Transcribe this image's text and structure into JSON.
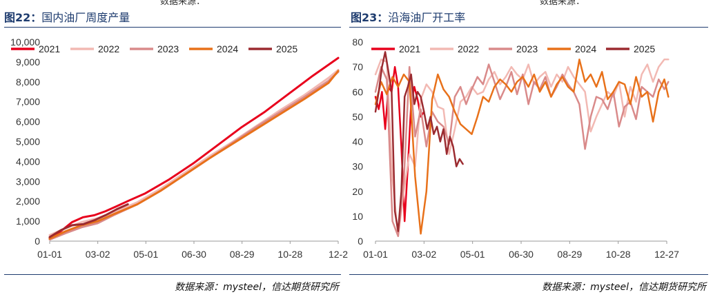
{
  "header_fragments": {
    "left": "数据来源：",
    "right": "数据来源："
  },
  "charts": [
    {
      "title_prefix": "图22：",
      "title_text": "国内油厂周度产量",
      "source": "数据来源：mysteel，信达期货研究所"
    },
    {
      "title_prefix": "图23：",
      "title_text": "沿海油厂开工率",
      "source": "数据来源：mysteel，信达期货研究所"
    }
  ],
  "chart_data": [
    {
      "type": "line",
      "title": "国内油厂周度产量",
      "x_tick_labels": [
        "01-01",
        "03-02",
        "05-01",
        "06-30",
        "08-29",
        "10-28",
        "12-2"
      ],
      "y_tick_labels": [
        "0",
        "1,000",
        "2,000",
        "3,000",
        "4,000",
        "5,000",
        "6,000",
        "7,000",
        "8,000",
        "9,000",
        "10,000"
      ],
      "ylim": [
        0,
        10000
      ],
      "x_domain_days": [
        0,
        362
      ],
      "grid": false,
      "legend": "top",
      "series": [
        {
          "name": "2021",
          "color": "#e8001c",
          "width": 3,
          "x": [
            0,
            14,
            28,
            42,
            56,
            70,
            84,
            100,
            120,
            150,
            180,
            210,
            240,
            270,
            300,
            330,
            362
          ],
          "y": [
            150,
            500,
            950,
            1200,
            1300,
            1500,
            1750,
            2050,
            2400,
            3100,
            3900,
            4800,
            5700,
            6500,
            7400,
            8300,
            9200
          ]
        },
        {
          "name": "2022",
          "color": "#f2b9b3",
          "width": 3,
          "x": [
            0,
            20,
            40,
            60,
            80,
            110,
            140,
            170,
            200,
            230,
            260,
            290,
            320,
            350,
            362
          ],
          "y": [
            300,
            650,
            950,
            1150,
            1450,
            1950,
            2650,
            3450,
            4250,
            5000,
            5800,
            6600,
            7350,
            8200,
            8600
          ]
        },
        {
          "name": "2023",
          "color": "#d98a8a",
          "width": 3,
          "x": [
            0,
            20,
            40,
            60,
            80,
            110,
            140,
            170,
            200,
            230,
            260,
            290,
            320,
            350,
            362
          ],
          "y": [
            80,
            400,
            700,
            900,
            1300,
            1850,
            2550,
            3350,
            4150,
            4950,
            5750,
            6500,
            7250,
            8050,
            8500
          ]
        },
        {
          "name": "2024",
          "color": "#e8711a",
          "width": 3,
          "x": [
            0,
            20,
            40,
            60,
            80,
            110,
            140,
            170,
            200,
            230,
            260,
            290,
            320,
            350,
            362
          ],
          "y": [
            120,
            500,
            800,
            1000,
            1350,
            1850,
            2550,
            3350,
            4150,
            4900,
            5650,
            6400,
            7150,
            7950,
            8550
          ]
        },
        {
          "name": "2025",
          "color": "#9b2b30",
          "width": 3,
          "x": [
            0,
            14,
            28,
            42,
            56,
            70,
            84,
            98
          ],
          "y": [
            200,
            550,
            800,
            850,
            1050,
            1300,
            1600,
            1850
          ]
        }
      ]
    },
    {
      "type": "line",
      "title": "沿海油厂开工率",
      "x_tick_labels": [
        "01-01",
        "03-02",
        "05-01",
        "06-30",
        "08-29",
        "10-28",
        "12-27"
      ],
      "y_tick_labels": [
        "0",
        "10",
        "20",
        "30",
        "40",
        "50",
        "60",
        "70",
        "80"
      ],
      "ylim": [
        0,
        80
      ],
      "x_domain_days": [
        0,
        360
      ],
      "grid": false,
      "legend": "top",
      "series": [
        {
          "name": "2021",
          "color": "#e8001c",
          "width": 2.5,
          "x": [
            0,
            4,
            8,
            12,
            16,
            20,
            24,
            28,
            32,
            36,
            40,
            44,
            48,
            52,
            56,
            60
          ],
          "y": [
            58,
            53,
            60,
            45,
            62,
            60,
            70,
            62,
            38,
            8,
            30,
            55,
            62,
            57,
            50,
            52
          ]
        },
        {
          "name": "2022",
          "color": "#f2b9b3",
          "width": 2.5,
          "x": [
            0,
            7,
            14,
            21,
            28,
            35,
            42,
            49,
            56,
            63,
            70,
            77,
            84,
            91,
            98,
            105,
            112,
            119,
            126,
            133,
            140,
            147,
            154,
            161,
            168,
            175,
            182,
            189,
            196,
            203,
            210,
            217,
            224,
            231,
            238,
            245,
            252,
            259,
            266,
            273,
            280,
            287,
            294,
            301,
            308,
            315,
            322,
            329,
            336,
            343,
            350,
            357,
            362
          ],
          "y": [
            67,
            73,
            72,
            25,
            2,
            20,
            35,
            30,
            57,
            63,
            60,
            54,
            53,
            35,
            45,
            56,
            58,
            62,
            59,
            60,
            65,
            68,
            63,
            66,
            70,
            67,
            65,
            71,
            63,
            66,
            68,
            62,
            67,
            64,
            70,
            66,
            63,
            60,
            44,
            50,
            55,
            60,
            58,
            64,
            50,
            62,
            56,
            67,
            71,
            64,
            70,
            73,
            73
          ]
        },
        {
          "name": "2023",
          "color": "#d98a8a",
          "width": 2.5,
          "x": [
            0,
            7,
            14,
            21,
            28,
            35,
            42,
            49,
            56,
            63,
            70,
            77,
            84,
            91,
            98,
            105,
            112,
            119,
            126,
            133,
            140,
            147,
            154,
            161,
            168,
            175,
            182,
            189,
            196,
            203,
            210,
            217,
            224,
            231,
            238,
            245,
            252,
            259,
            266,
            273,
            280,
            287,
            294,
            301,
            308,
            315,
            322,
            329,
            336,
            343,
            350,
            357,
            362
          ],
          "y": [
            60,
            70,
            65,
            8,
            2,
            24,
            70,
            42,
            53,
            38,
            52,
            48,
            46,
            39,
            58,
            62,
            55,
            61,
            66,
            63,
            71,
            64,
            57,
            62,
            68,
            59,
            67,
            55,
            64,
            61,
            66,
            58,
            62,
            67,
            63,
            60,
            55,
            37,
            50,
            58,
            57,
            53,
            60,
            46,
            54,
            56,
            49,
            62,
            60,
            58,
            65,
            61,
            64
          ]
        },
        {
          "name": "2024",
          "color": "#e8711a",
          "width": 2.5,
          "x": [
            0,
            7,
            14,
            21,
            28,
            35,
            42,
            49,
            56,
            63,
            70,
            77,
            84,
            91,
            98,
            105,
            112,
            119,
            126,
            133,
            140,
            147,
            154,
            161,
            168,
            175,
            182,
            189,
            196,
            203,
            210,
            217,
            224,
            231,
            238,
            245,
            252,
            259,
            266,
            273,
            280,
            287,
            294,
            301,
            308,
            315,
            322,
            329,
            336,
            343,
            350,
            357,
            362
          ],
          "y": [
            55,
            64,
            59,
            66,
            62,
            67,
            64,
            26,
            3,
            20,
            57,
            67,
            61,
            58,
            52,
            47,
            45,
            43,
            50,
            58,
            56,
            62,
            65,
            63,
            60,
            64,
            66,
            62,
            67,
            60,
            64,
            58,
            63,
            66,
            62,
            60,
            73,
            64,
            67,
            62,
            68,
            57,
            60,
            64,
            63,
            55,
            66,
            58,
            60,
            48,
            60,
            65,
            58
          ]
        },
        {
          "name": "2025",
          "color": "#9b2b30",
          "width": 2.5,
          "x": [
            0,
            4,
            8,
            12,
            16,
            20,
            24,
            28,
            32,
            36,
            40,
            44,
            48,
            52,
            56,
            60,
            64,
            68,
            72,
            76,
            80,
            84,
            88,
            92,
            96,
            100,
            104,
            108
          ],
          "y": [
            52,
            60,
            70,
            76,
            68,
            60,
            12,
            4,
            20,
            58,
            62,
            67,
            55,
            60,
            58,
            52,
            45,
            50,
            43,
            46,
            40,
            45,
            35,
            42,
            38,
            30,
            33,
            31
          ]
        }
      ]
    }
  ]
}
